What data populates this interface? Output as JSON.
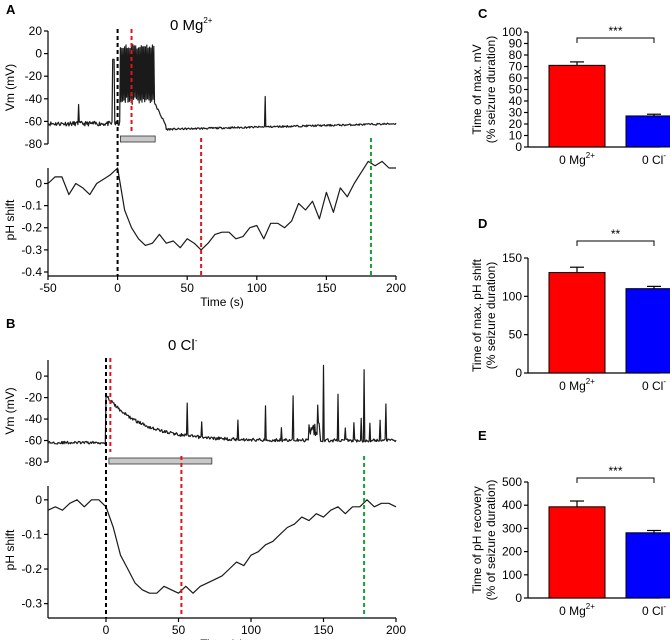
{
  "panels": {
    "A": {
      "letter": "A",
      "condition": {
        "base": "0 Mg",
        "sup": "2+"
      },
      "vm": {
        "ylabel": "Vm (mV)",
        "yticks": [
          20,
          0,
          -20,
          -40,
          -60,
          -80
        ],
        "ylim": [
          -80,
          20
        ]
      },
      "ph": {
        "ylabel": "pH shift",
        "yticks": [
          0,
          -0.1,
          -0.2,
          -0.3,
          -0.4
        ],
        "ylim": [
          -0.4,
          0.07
        ],
        "x": [
          -50,
          -45,
          -40,
          -35,
          -30,
          -25,
          -20,
          -15,
          -10,
          -5,
          0,
          5,
          10,
          15,
          20,
          25,
          30,
          35,
          40,
          45,
          50,
          55,
          60,
          65,
          70,
          75,
          80,
          85,
          90,
          95,
          100,
          105,
          110,
          115,
          120,
          125,
          130,
          135,
          140,
          145,
          150,
          155,
          160,
          165,
          170,
          175,
          180,
          185,
          190,
          195,
          200
        ],
        "y": [
          0.0,
          0.03,
          0.03,
          -0.05,
          0.0,
          -0.02,
          -0.05,
          0.0,
          0.02,
          0.04,
          0.07,
          -0.12,
          -0.2,
          -0.25,
          -0.28,
          -0.27,
          -0.23,
          -0.27,
          -0.26,
          -0.29,
          -0.25,
          -0.27,
          -0.3,
          -0.27,
          -0.23,
          -0.22,
          -0.22,
          -0.25,
          -0.24,
          -0.2,
          -0.19,
          -0.25,
          -0.18,
          -0.18,
          -0.2,
          -0.17,
          -0.09,
          -0.12,
          -0.08,
          -0.16,
          -0.04,
          -0.13,
          -0.02,
          -0.06,
          0.0,
          0.05,
          0.1,
          0.08,
          0.1,
          0.07,
          0.07
        ]
      },
      "xaxis": {
        "label": "Time (s)",
        "ticks": [
          -50,
          0,
          50,
          100,
          150,
          200
        ],
        "xlim": [
          -50,
          200
        ]
      },
      "markers": {
        "onset_s": 0,
        "vm_red_s": 10,
        "ph_red_s": 60,
        "green_s": 182
      },
      "bar": {
        "start_s": 2,
        "end_s": 27
      }
    },
    "B": {
      "letter": "B",
      "condition": {
        "base": "0 Cl",
        "sup": "-"
      },
      "vm": {
        "ylabel": "Vm (mV)",
        "yticks": [
          0,
          -20,
          -40,
          -60,
          -80
        ],
        "ylim": [
          -80,
          15
        ]
      },
      "ph": {
        "ylabel": "pH shift",
        "yticks": [
          0,
          -0.1,
          -0.2,
          -0.3
        ],
        "ylim": [
          -0.33,
          0.04
        ],
        "x": [
          -40,
          -35,
          -30,
          -25,
          -20,
          -15,
          -10,
          -5,
          0,
          5,
          10,
          15,
          20,
          25,
          30,
          35,
          40,
          45,
          50,
          55,
          60,
          65,
          70,
          75,
          80,
          85,
          90,
          95,
          100,
          105,
          110,
          115,
          120,
          125,
          130,
          135,
          140,
          145,
          150,
          155,
          160,
          165,
          170,
          175,
          180,
          185,
          190,
          195,
          200
        ],
        "y": [
          -0.03,
          -0.02,
          -0.03,
          -0.01,
          0.0,
          -0.02,
          0.0,
          0.0,
          -0.02,
          -0.08,
          -0.16,
          -0.2,
          -0.24,
          -0.26,
          -0.27,
          -0.27,
          -0.25,
          -0.26,
          -0.27,
          -0.25,
          -0.27,
          -0.25,
          -0.24,
          -0.23,
          -0.22,
          -0.2,
          -0.18,
          -0.19,
          -0.16,
          -0.15,
          -0.13,
          -0.12,
          -0.1,
          -0.08,
          -0.07,
          -0.05,
          -0.06,
          -0.04,
          -0.05,
          -0.03,
          -0.02,
          -0.04,
          -0.02,
          -0.02,
          0.0,
          -0.02,
          -0.01,
          -0.01,
          -0.02
        ]
      },
      "xaxis": {
        "label": "Time (s)",
        "ticks": [
          0,
          50,
          100,
          150,
          200
        ],
        "xlim": [
          -40,
          200
        ]
      },
      "markers": {
        "onset_s": 0,
        "vm_red_s": 3,
        "ph_red_s": 52,
        "green_s": 178
      },
      "bar": {
        "start_s": 2,
        "end_s": 73
      }
    },
    "C": {
      "letter": "C",
      "ylabel_lines": [
        "Time of max. mV",
        "(% seizure duration)"
      ],
      "yticks": [
        0,
        10,
        20,
        30,
        40,
        50,
        60,
        70,
        80,
        90,
        100
      ],
      "ylim": [
        0,
        100
      ],
      "significance": "***"
    },
    "D": {
      "letter": "D",
      "ylabel_lines": [
        "Time of max. pH shift",
        "(% seizure duration)"
      ],
      "yticks": [
        0,
        50,
        100,
        150
      ],
      "ylim": [
        0,
        150
      ],
      "significance": "**"
    },
    "E": {
      "letter": "E",
      "ylabel_lines": [
        "Time of pH recovery",
        "(% of seizure duration)"
      ],
      "yticks": [
        0,
        100,
        200,
        300,
        400,
        500
      ],
      "ylim": [
        0,
        500
      ],
      "significance": "***"
    }
  },
  "chart_data": [
    {
      "type": "line",
      "panel": "A",
      "title": "0 Mg2+",
      "xlabel": "Time (s)",
      "ylabel": "pH shift",
      "x": [
        -50,
        -45,
        -40,
        -35,
        -30,
        -25,
        -20,
        -15,
        -10,
        -5,
        0,
        5,
        10,
        15,
        20,
        25,
        30,
        35,
        40,
        45,
        50,
        55,
        60,
        65,
        70,
        75,
        80,
        85,
        90,
        95,
        100,
        105,
        110,
        115,
        120,
        125,
        130,
        135,
        140,
        145,
        150,
        155,
        160,
        165,
        170,
        175,
        180,
        185,
        190,
        195,
        200
      ],
      "y": [
        0.0,
        0.03,
        0.03,
        -0.05,
        0.0,
        -0.02,
        -0.05,
        0.0,
        0.02,
        0.04,
        0.07,
        -0.12,
        -0.2,
        -0.25,
        -0.28,
        -0.27,
        -0.23,
        -0.27,
        -0.26,
        -0.29,
        -0.25,
        -0.27,
        -0.3,
        -0.27,
        -0.23,
        -0.22,
        -0.22,
        -0.25,
        -0.24,
        -0.2,
        -0.19,
        -0.25,
        -0.18,
        -0.18,
        -0.2,
        -0.17,
        -0.09,
        -0.12,
        -0.08,
        -0.16,
        -0.04,
        -0.13,
        -0.02,
        -0.06,
        0.0,
        0.05,
        0.1,
        0.08,
        0.1,
        0.07,
        0.07
      ],
      "xlim": [
        -50,
        200
      ],
      "ylim": [
        -0.4,
        0.07
      ]
    },
    {
      "type": "line",
      "panel": "B",
      "title": "0 Cl-",
      "xlabel": "Time (s)",
      "ylabel": "pH shift",
      "x": [
        -40,
        -35,
        -30,
        -25,
        -20,
        -15,
        -10,
        -5,
        0,
        5,
        10,
        15,
        20,
        25,
        30,
        35,
        40,
        45,
        50,
        55,
        60,
        65,
        70,
        75,
        80,
        85,
        90,
        95,
        100,
        105,
        110,
        115,
        120,
        125,
        130,
        135,
        140,
        145,
        150,
        155,
        160,
        165,
        170,
        175,
        180,
        185,
        190,
        195,
        200
      ],
      "y": [
        -0.03,
        -0.02,
        -0.03,
        -0.01,
        0.0,
        -0.02,
        0.0,
        0.0,
        -0.02,
        -0.08,
        -0.16,
        -0.2,
        -0.24,
        -0.26,
        -0.27,
        -0.27,
        -0.25,
        -0.26,
        -0.27,
        -0.25,
        -0.27,
        -0.25,
        -0.24,
        -0.23,
        -0.22,
        -0.2,
        -0.18,
        -0.19,
        -0.16,
        -0.15,
        -0.13,
        -0.12,
        -0.1,
        -0.08,
        -0.07,
        -0.05,
        -0.06,
        -0.04,
        -0.05,
        -0.03,
        -0.02,
        -0.04,
        -0.02,
        -0.02,
        0.0,
        -0.02,
        -0.01,
        -0.01,
        -0.02
      ],
      "xlim": [
        -40,
        200
      ],
      "ylim": [
        -0.33,
        0.04
      ]
    },
    {
      "type": "bar",
      "panel": "C",
      "categories": [
        {
          "base": "0 Mg",
          "sup": "2+"
        },
        {
          "base": "0 Cl",
          "sup": "-"
        }
      ],
      "values": [
        71,
        27
      ],
      "errors": [
        3,
        1.5
      ],
      "colors": [
        "#ff0000",
        "#0000ff"
      ],
      "ylabel": "Time of max. mV (% seizure duration)",
      "ylim": [
        0,
        100
      ],
      "significance": "***"
    },
    {
      "type": "bar",
      "panel": "D",
      "categories": [
        {
          "base": "0 Mg",
          "sup": "2+"
        },
        {
          "base": "0 Cl",
          "sup": "-"
        }
      ],
      "values": [
        131,
        110
      ],
      "errors": [
        7,
        3
      ],
      "colors": [
        "#ff0000",
        "#0000ff"
      ],
      "ylabel": "Time of max. pH shift (% seizure duration)",
      "ylim": [
        0,
        150
      ],
      "significance": "**"
    },
    {
      "type": "bar",
      "panel": "E",
      "categories": [
        {
          "base": "0 Mg",
          "sup": "2+"
        },
        {
          "base": "0 Cl",
          "sup": "-"
        }
      ],
      "values": [
        393,
        281
      ],
      "errors": [
        25,
        10
      ],
      "colors": [
        "#ff0000",
        "#0000ff"
      ],
      "ylabel": "Time of pH recovery (% of seizure duration)",
      "ylim": [
        0,
        500
      ],
      "significance": "***"
    }
  ],
  "colors": {
    "seizure_onset": "#000000",
    "vm_peak": "#e0141e",
    "ph_peak": "#e0141e",
    "ph_recovery": "#16a035",
    "stim_bar_fill": "#c8c8c8"
  }
}
